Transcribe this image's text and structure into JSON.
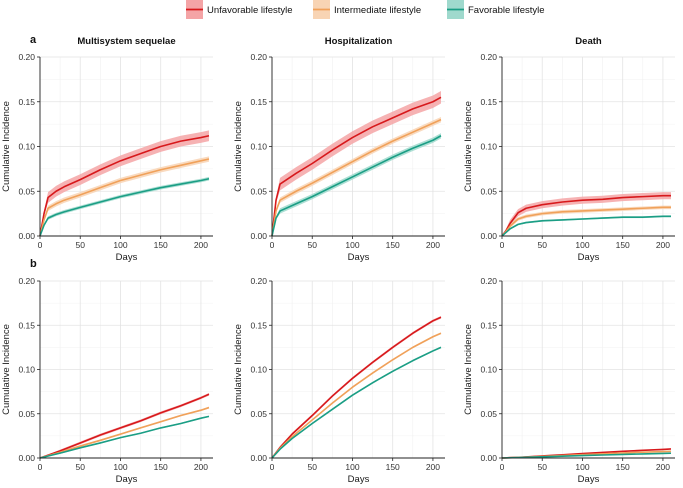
{
  "legend": [
    {
      "label": "Unfavorable lifestyle",
      "color": "#d7191c",
      "fill": "#f4a4a6"
    },
    {
      "label": "Intermediate lifestyle",
      "color": "#f0a15a",
      "fill": "#f8d4b4"
    },
    {
      "label": "Favorable lifestyle",
      "color": "#1b9e85",
      "fill": "#9fd9cd"
    }
  ],
  "rows": [
    {
      "letter": "a"
    },
    {
      "letter": "b"
    }
  ],
  "chart_data": [
    {
      "type": "line",
      "row": "a",
      "title": "Multisystem sequelae",
      "xlabel": "Days",
      "ylabel": "Cumulative Incidence",
      "xlim": [
        0,
        215
      ],
      "ylim": [
        0,
        0.2
      ],
      "xticks": [
        "0",
        "50",
        "100",
        "150",
        "200"
      ],
      "yticks": [
        "0.00",
        "0.05",
        "0.10",
        "0.15",
        "0.20"
      ],
      "x": [
        0,
        5,
        10,
        20,
        30,
        50,
        75,
        100,
        125,
        150,
        175,
        200,
        210
      ],
      "series": [
        {
          "name": "Unfavorable lifestyle",
          "values": [
            0,
            0.025,
            0.043,
            0.05,
            0.055,
            0.063,
            0.074,
            0.084,
            0.092,
            0.1,
            0.106,
            0.11,
            0.112
          ],
          "band": 0.006
        },
        {
          "name": "Intermediate lifestyle",
          "values": [
            0,
            0.018,
            0.031,
            0.036,
            0.04,
            0.046,
            0.054,
            0.062,
            0.068,
            0.074,
            0.079,
            0.084,
            0.086
          ],
          "band": 0.003
        },
        {
          "name": "Favorable lifestyle",
          "values": [
            0,
            0.012,
            0.02,
            0.024,
            0.027,
            0.032,
            0.038,
            0.044,
            0.049,
            0.054,
            0.058,
            0.062,
            0.064
          ],
          "band": 0.002
        }
      ]
    },
    {
      "type": "line",
      "row": "a",
      "title": "Hospitalization",
      "xlabel": "Days",
      "ylabel": "Cumulative Incidence",
      "xlim": [
        0,
        215
      ],
      "ylim": [
        0,
        0.2
      ],
      "xticks": [
        "0",
        "50",
        "100",
        "150",
        "200"
      ],
      "yticks": [
        "0.00",
        "0.05",
        "0.10",
        "0.15",
        "0.20"
      ],
      "x": [
        0,
        5,
        10,
        20,
        30,
        50,
        75,
        100,
        125,
        150,
        175,
        200,
        210
      ],
      "series": [
        {
          "name": "Unfavorable lifestyle",
          "values": [
            0,
            0.04,
            0.058,
            0.064,
            0.07,
            0.081,
            0.096,
            0.11,
            0.122,
            0.132,
            0.142,
            0.15,
            0.155
          ],
          "band": 0.007
        },
        {
          "name": "Intermediate lifestyle",
          "values": [
            0,
            0.028,
            0.04,
            0.045,
            0.05,
            0.059,
            0.071,
            0.083,
            0.095,
            0.106,
            0.116,
            0.126,
            0.13
          ],
          "band": 0.003
        },
        {
          "name": "Favorable lifestyle",
          "values": [
            0,
            0.02,
            0.028,
            0.032,
            0.036,
            0.044,
            0.055,
            0.066,
            0.077,
            0.088,
            0.098,
            0.107,
            0.112
          ],
          "band": 0.003
        }
      ]
    },
    {
      "type": "line",
      "row": "a",
      "title": "Death",
      "xlabel": "Days",
      "ylabel": "Cumulative Incidence",
      "xlim": [
        0,
        215
      ],
      "ylim": [
        0,
        0.2
      ],
      "xticks": [
        "0",
        "50",
        "100",
        "150",
        "200"
      ],
      "yticks": [
        "0.00",
        "0.05",
        "0.10",
        "0.15",
        "0.20"
      ],
      "x": [
        0,
        5,
        10,
        20,
        30,
        50,
        75,
        100,
        125,
        150,
        175,
        200,
        210
      ],
      "series": [
        {
          "name": "Unfavorable lifestyle",
          "values": [
            0,
            0.006,
            0.014,
            0.026,
            0.031,
            0.035,
            0.038,
            0.04,
            0.041,
            0.043,
            0.044,
            0.045,
            0.045
          ],
          "band": 0.004
        },
        {
          "name": "Intermediate lifestyle",
          "values": [
            0,
            0.005,
            0.011,
            0.019,
            0.022,
            0.025,
            0.027,
            0.028,
            0.029,
            0.03,
            0.031,
            0.032,
            0.032
          ],
          "band": 0.002
        },
        {
          "name": "Favorable lifestyle",
          "values": [
            0,
            0.004,
            0.008,
            0.013,
            0.015,
            0.017,
            0.018,
            0.019,
            0.02,
            0.021,
            0.021,
            0.022,
            0.022
          ],
          "band": 0.001
        }
      ]
    },
    {
      "type": "line",
      "row": "b",
      "title": "",
      "xlabel": "Days",
      "ylabel": "Cumulative Incidence",
      "xlim": [
        0,
        215
      ],
      "ylim": [
        0,
        0.2
      ],
      "xticks": [
        "0",
        "50",
        "100",
        "150",
        "200"
      ],
      "yticks": [
        "0.00",
        "0.05",
        "0.10",
        "0.15",
        "0.20"
      ],
      "x": [
        0,
        25,
        50,
        75,
        100,
        125,
        150,
        175,
        200,
        210
      ],
      "series": [
        {
          "name": "Unfavorable lifestyle",
          "values": [
            0,
            0.008,
            0.017,
            0.026,
            0.034,
            0.042,
            0.051,
            0.059,
            0.068,
            0.072
          ],
          "band": 0.0015
        },
        {
          "name": "Intermediate lifestyle",
          "values": [
            0,
            0.0065,
            0.0135,
            0.02,
            0.027,
            0.034,
            0.041,
            0.048,
            0.054,
            0.057
          ],
          "band": 0.001
        },
        {
          "name": "Favorable lifestyle",
          "values": [
            0,
            0.0055,
            0.0115,
            0.017,
            0.023,
            0.028,
            0.034,
            0.039,
            0.045,
            0.047
          ],
          "band": 0.0008
        }
      ]
    },
    {
      "type": "line",
      "row": "b",
      "title": "",
      "xlabel": "Days",
      "ylabel": "Cumulative Incidence",
      "xlim": [
        0,
        215
      ],
      "ylim": [
        0,
        0.2
      ],
      "xticks": [
        "0",
        "50",
        "100",
        "150",
        "200"
      ],
      "yticks": [
        "0.00",
        "0.05",
        "0.10",
        "0.15",
        "0.20"
      ],
      "x": [
        0,
        10,
        25,
        50,
        75,
        100,
        125,
        150,
        175,
        200,
        210
      ],
      "series": [
        {
          "name": "Unfavorable lifestyle",
          "values": [
            0,
            0.012,
            0.027,
            0.048,
            0.07,
            0.09,
            0.108,
            0.125,
            0.141,
            0.155,
            0.159
          ],
          "band": 0.0015
        },
        {
          "name": "Intermediate lifestyle",
          "values": [
            0,
            0.011,
            0.024,
            0.043,
            0.062,
            0.08,
            0.096,
            0.111,
            0.125,
            0.137,
            0.141
          ],
          "band": 0.001
        },
        {
          "name": "Favorable lifestyle",
          "values": [
            0,
            0.01,
            0.022,
            0.039,
            0.055,
            0.071,
            0.085,
            0.098,
            0.11,
            0.121,
            0.125
          ],
          "band": 0.001
        }
      ]
    },
    {
      "type": "line",
      "row": "b",
      "title": "",
      "xlabel": "Days",
      "ylabel": "Cumulative Incidence",
      "xlim": [
        0,
        215
      ],
      "ylim": [
        0,
        0.2
      ],
      "xticks": [
        "0",
        "50",
        "100",
        "150",
        "200"
      ],
      "yticks": [
        "0.00",
        "0.05",
        "0.10",
        "0.15",
        "0.20"
      ],
      "x": [
        0,
        25,
        50,
        75,
        100,
        125,
        150,
        175,
        200,
        210
      ],
      "series": [
        {
          "name": "Unfavorable lifestyle",
          "values": [
            0,
            0.001,
            0.0023,
            0.0036,
            0.005,
            0.0063,
            0.0075,
            0.0087,
            0.0097,
            0.0102
          ],
          "band": 0.0006
        },
        {
          "name": "Intermediate lifestyle",
          "values": [
            0,
            0.0008,
            0.0018,
            0.0028,
            0.0038,
            0.0048,
            0.0057,
            0.0066,
            0.0073,
            0.0076
          ],
          "band": 0.0004
        },
        {
          "name": "Favorable lifestyle",
          "values": [
            0,
            0.0006,
            0.0013,
            0.002,
            0.0027,
            0.0034,
            0.004,
            0.0046,
            0.0052,
            0.0054
          ],
          "band": 0.0003
        }
      ]
    }
  ]
}
